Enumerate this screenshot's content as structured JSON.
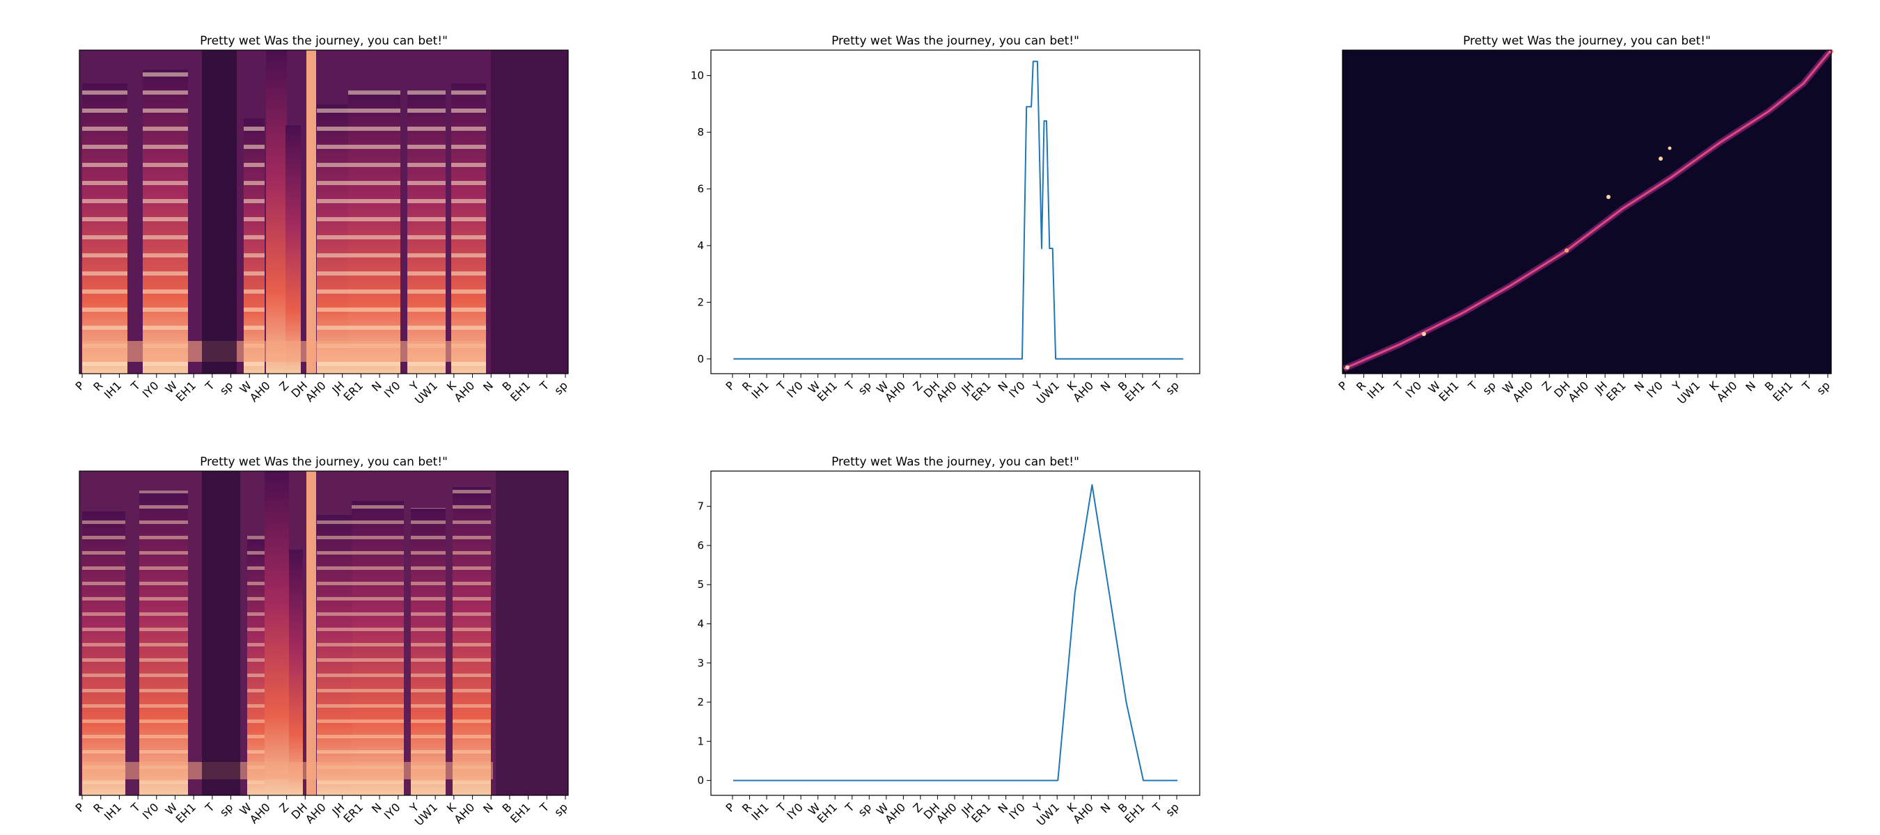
{
  "colors": {
    "line": "#1f77b4",
    "axis": "#000000",
    "background": "#ffffff",
    "spectrogram_low": "#0b0724",
    "spectrogram_mid": "#b4295a",
    "spectrogram_high": "#fae8d6"
  },
  "chart_data": [
    {
      "type": "heatmap",
      "subtype": "mel-spectrogram",
      "title": "Pretty wet Was the journey, you can bet!\"",
      "xticks": [
        "P",
        "R",
        "IH1",
        "T",
        "IY0",
        "W",
        "EH1",
        "T",
        "sp",
        "W",
        "AH0",
        "Z",
        "DH",
        "AH0",
        "JH",
        "ER1",
        "N",
        "IY0",
        "Y",
        "UW1",
        "K",
        "AH0",
        "N",
        "B",
        "EH1",
        "T",
        "sp"
      ],
      "yticks": [],
      "grid": false
    },
    {
      "type": "line",
      "title": "Pretty wet Was the journey, you can bet!\"",
      "xticks": [
        "P",
        "R",
        "IH1",
        "T",
        "IY0",
        "W",
        "EH1",
        "T",
        "sp",
        "W",
        "AH0",
        "Z",
        "DH",
        "AH0",
        "JH",
        "ER1",
        "N",
        "IY0",
        "Y",
        "UW1",
        "K",
        "AH0",
        "N",
        "B",
        "EH1",
        "T",
        "sp"
      ],
      "yticks": [
        "0",
        "2",
        "4",
        "6",
        "8",
        "10"
      ],
      "ylim": [
        -0.52,
        10.9
      ],
      "xlim": [
        -3.7,
        76.7
      ],
      "grid": false,
      "series": [
        {
          "x": [
            0,
            47.5,
            48.2,
            49.0,
            49.3,
            50.0,
            50.7,
            51.1,
            51.5,
            52.0,
            52.5,
            53.0,
            53.4,
            74
          ],
          "y": [
            0,
            0,
            8.9,
            8.9,
            10.5,
            10.5,
            3.9,
            8.4,
            8.4,
            3.9,
            3.9,
            0,
            0,
            0
          ]
        }
      ]
    },
    {
      "type": "heatmap",
      "subtype": "attention-alignment",
      "title": "Pretty wet Was the journey, you can bet!\"",
      "xticks": [
        "P",
        "R",
        "IH1",
        "T",
        "IY0",
        "W",
        "EH1",
        "T",
        "sp",
        "W",
        "AH0",
        "Z",
        "DH",
        "AH0",
        "JH",
        "ER1",
        "N",
        "IY0",
        "Y",
        "UW1",
        "K",
        "AH0",
        "N",
        "B",
        "EH1",
        "T",
        "sp"
      ],
      "yticks": [],
      "grid": false
    },
    {
      "type": "heatmap",
      "subtype": "mel-spectrogram",
      "title": "Pretty wet Was the journey, you can bet!\"",
      "xticks": [
        "P",
        "R",
        "IH1",
        "T",
        "IY0",
        "W",
        "EH1",
        "T",
        "sp",
        "W",
        "AH0",
        "Z",
        "DH",
        "AH0",
        "JH",
        "ER1",
        "N",
        "IY0",
        "Y",
        "UW1",
        "K",
        "AH0",
        "N",
        "B",
        "EH1",
        "T",
        "sp"
      ],
      "yticks": [],
      "grid": false
    },
    {
      "type": "line",
      "title": "Pretty wet Was the journey, you can bet!\"",
      "xticks": [
        "P",
        "R",
        "IH1",
        "T",
        "IY0",
        "W",
        "EH1",
        "T",
        "sp",
        "W",
        "AH0",
        "Z",
        "DH",
        "AH0",
        "JH",
        "ER1",
        "N",
        "IY0",
        "Y",
        "UW1",
        "K",
        "AH0",
        "N",
        "B",
        "EH1",
        "T",
        "sp"
      ],
      "yticks": [
        "0",
        "1",
        "2",
        "3",
        "4",
        "5",
        "6",
        "7"
      ],
      "ylim": [
        -0.38,
        7.9
      ],
      "xlim": [
        -1.3,
        27.3
      ],
      "grid": false,
      "series": [
        {
          "x": [
            0,
            19,
            20,
            21,
            22,
            23,
            24,
            25,
            26
          ],
          "y": [
            0,
            0,
            4.8,
            7.55,
            4.8,
            2.0,
            0,
            0,
            0
          ]
        }
      ]
    }
  ]
}
